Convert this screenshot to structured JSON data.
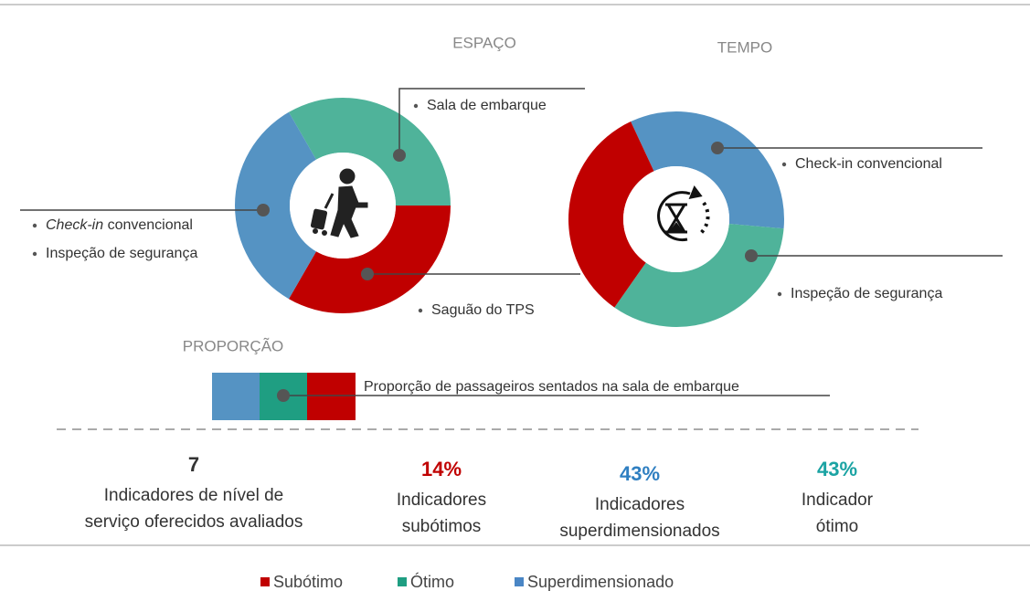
{
  "espaco": {
    "title": "ESPAÇO",
    "segments": [
      {
        "color": "#4fb39a",
        "items": [
          {
            "text": "Sala de embarque"
          }
        ]
      },
      {
        "color": "#c00000",
        "items": [
          {
            "text": "Saguão do TPS"
          }
        ]
      },
      {
        "color": "#5593c3",
        "items": [
          {
            "emphasis": "Check-in",
            "text": " convencional"
          },
          {
            "text": "Inspeção de segurança"
          }
        ]
      }
    ]
  },
  "tempo": {
    "title": "TEMPO",
    "segments": [
      {
        "color": "#5593c3",
        "items": [
          {
            "text": "Check-in convencional"
          }
        ]
      },
      {
        "color": "#4fb39a",
        "items": [
          {
            "text": "Inspeção de segurança"
          }
        ]
      },
      {
        "color": "#c00000",
        "items": []
      }
    ]
  },
  "proporcao": {
    "title": "PROPORÇÃO",
    "colors": [
      "#5593c3",
      "#1f9e82",
      "#c00000"
    ],
    "label": "Proporção de passageiros sentados na sala de embarque"
  },
  "stats": [
    {
      "value": "7",
      "color": "#333333",
      "lines": [
        "Indicadores de nível de",
        "serviço oferecidos avaliados"
      ]
    },
    {
      "value": "14%",
      "color": "#c00000",
      "lines": [
        "Indicadores",
        "subótimos"
      ]
    },
    {
      "value": "43%",
      "color": "#2f7fc1",
      "lines": [
        "Indicadores",
        "superdimensionados"
      ]
    },
    {
      "value": "43%",
      "color": "#1aa3a3",
      "lines": [
        "Indicador",
        "ótimo"
      ]
    }
  ],
  "legend": [
    {
      "label": "Subótimo",
      "color": "#c00000"
    },
    {
      "label": "Ótimo",
      "color": "#1f9e82"
    },
    {
      "label": "Superdimensionado",
      "color": "#4a86c5"
    }
  ]
}
